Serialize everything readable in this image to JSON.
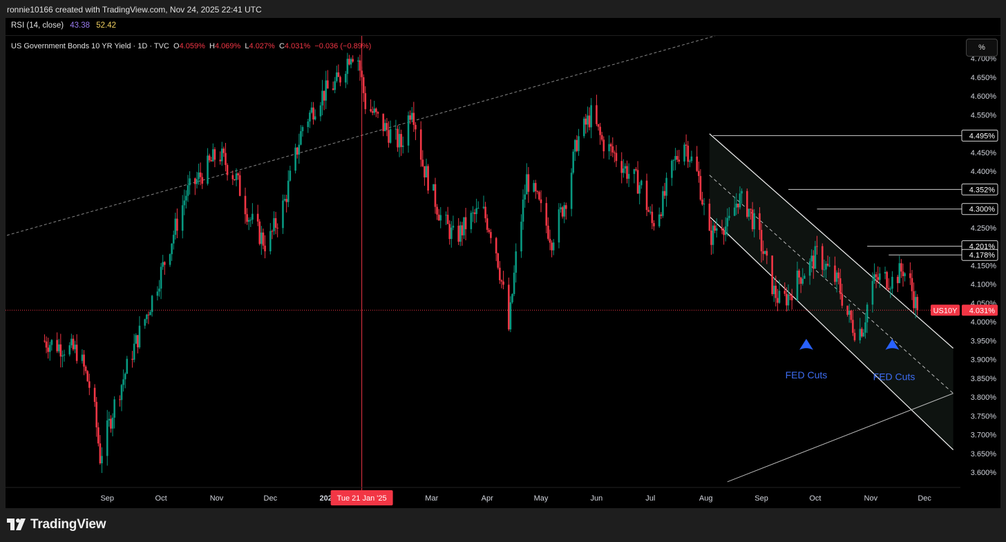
{
  "header": {
    "credit": "ronnie10166 created with TradingView.com, Nov 24, 2025 22:41 UTC"
  },
  "rsi": {
    "label": "RSI (14, close)",
    "value1": "43.38",
    "value2": "52.42",
    "color1": "#9a7cf0",
    "color2": "#f0d060"
  },
  "legend": {
    "symbol": "US Government Bonds 10 YR Yield · 1D · TVC",
    "open_label": "O",
    "open": "4.059%",
    "high_label": "H",
    "high": "4.069%",
    "low_label": "L",
    "low": "4.027%",
    "close_label": "C",
    "close": "4.031%",
    "change": "−0.036 (−0.89%)"
  },
  "toolbar": {
    "percent_button": "%"
  },
  "footer": {
    "brand": "TradingView"
  },
  "chart_data": {
    "type": "candlestick",
    "symbol": "US10Y",
    "ylim": [
      3.56,
      4.76
    ],
    "yticks": [
      "4.700%",
      "4.650%",
      "4.600%",
      "4.550%",
      "4.450%",
      "4.400%",
      "4.250%",
      "4.150%",
      "4.100%",
      "4.050%",
      "4.000%",
      "3.950%",
      "3.900%",
      "3.850%",
      "3.800%",
      "3.750%",
      "3.700%",
      "3.650%",
      "3.600%"
    ],
    "price_labels": [
      {
        "value": 4.495,
        "text": "4.495%"
      },
      {
        "value": 4.352,
        "text": "4.352%"
      },
      {
        "value": 4.3,
        "text": "4.300%"
      },
      {
        "value": 4.201,
        "text": "4.201%"
      },
      {
        "value": 4.178,
        "text": "4.178%"
      }
    ],
    "current": {
      "value": 4.031,
      "text": "4.031%",
      "tag": "US10Y"
    },
    "x_months": [
      {
        "label": "Sep",
        "day": 56
      },
      {
        "label": "Oct",
        "day": 86
      },
      {
        "label": "Nov",
        "day": 117
      },
      {
        "label": "Dec",
        "day": 147
      },
      {
        "label": "202",
        "day": 178
      },
      {
        "label": "Mar",
        "day": 237
      },
      {
        "label": "Apr",
        "day": 268
      },
      {
        "label": "May",
        "day": 298
      },
      {
        "label": "Jun",
        "day": 329
      },
      {
        "label": "Jul",
        "day": 359
      },
      {
        "label": "Aug",
        "day": 390
      },
      {
        "label": "Sep",
        "day": 421
      },
      {
        "label": "Oct",
        "day": 451
      },
      {
        "label": "Nov",
        "day": 482
      },
      {
        "label": "Dec",
        "day": 512
      }
    ],
    "crosshair": {
      "day": 198,
      "label": "Tue 21 Jan '25"
    },
    "anchors": [
      [
        20,
        3.95
      ],
      [
        40,
        3.92
      ],
      [
        48,
        3.8
      ],
      [
        52,
        3.64
      ],
      [
        60,
        3.78
      ],
      [
        70,
        3.92
      ],
      [
        78,
        4.02
      ],
      [
        88,
        4.16
      ],
      [
        100,
        4.34
      ],
      [
        110,
        4.4
      ],
      [
        118,
        4.45
      ],
      [
        128,
        4.38
      ],
      [
        135,
        4.28
      ],
      [
        145,
        4.2
      ],
      [
        155,
        4.32
      ],
      [
        165,
        4.52
      ],
      [
        175,
        4.6
      ],
      [
        185,
        4.64
      ],
      [
        192,
        4.72
      ],
      [
        196,
        4.7
      ],
      [
        200,
        4.58
      ],
      [
        210,
        4.52
      ],
      [
        220,
        4.47
      ],
      [
        226,
        4.58
      ],
      [
        232,
        4.42
      ],
      [
        242,
        4.28
      ],
      [
        250,
        4.22
      ],
      [
        258,
        4.27
      ],
      [
        265,
        4.3
      ],
      [
        272,
        4.22
      ],
      [
        278,
        4.05
      ],
      [
        280,
        3.98
      ],
      [
        284,
        4.17
      ],
      [
        290,
        4.38
      ],
      [
        296,
        4.32
      ],
      [
        304,
        4.22
      ],
      [
        312,
        4.33
      ],
      [
        318,
        4.48
      ],
      [
        326,
        4.55
      ],
      [
        332,
        4.48
      ],
      [
        340,
        4.44
      ],
      [
        346,
        4.4
      ],
      [
        354,
        4.36
      ],
      [
        360,
        4.26
      ],
      [
        366,
        4.32
      ],
      [
        372,
        4.42
      ],
      [
        378,
        4.48
      ],
      [
        386,
        4.38
      ],
      [
        392,
        4.22
      ],
      [
        398,
        4.27
      ],
      [
        402,
        4.25
      ],
      [
        408,
        4.33
      ],
      [
        414,
        4.3
      ],
      [
        420,
        4.22
      ],
      [
        428,
        4.08
      ],
      [
        432,
        4.05
      ],
      [
        436,
        4.07
      ],
      [
        442,
        4.12
      ],
      [
        448,
        4.15
      ],
      [
        452,
        4.18
      ],
      [
        458,
        4.14
      ],
      [
        464,
        4.1
      ],
      [
        468,
        4.03
      ],
      [
        474,
        3.97
      ],
      [
        478,
        3.99
      ],
      [
        482,
        4.1
      ],
      [
        488,
        4.12
      ],
      [
        494,
        4.11
      ],
      [
        500,
        4.14
      ],
      [
        504,
        4.1
      ],
      [
        508,
        4.031
      ]
    ],
    "annotations": [
      {
        "text": "FED Cuts",
        "day": 446,
        "value": 3.85
      },
      {
        "text": "FED Cuts",
        "day": 495,
        "value": 3.845
      }
    ],
    "markers": [
      {
        "type": "arrow-up",
        "day": 446,
        "value": 3.955,
        "color": "#2962ff"
      },
      {
        "type": "arrow-up",
        "day": 494,
        "value": 3.955,
        "color": "#2962ff"
      }
    ],
    "grid": false,
    "up_color": "#089981",
    "down_color": "#f23645",
    "accent_tag_color": "#f23645"
  }
}
